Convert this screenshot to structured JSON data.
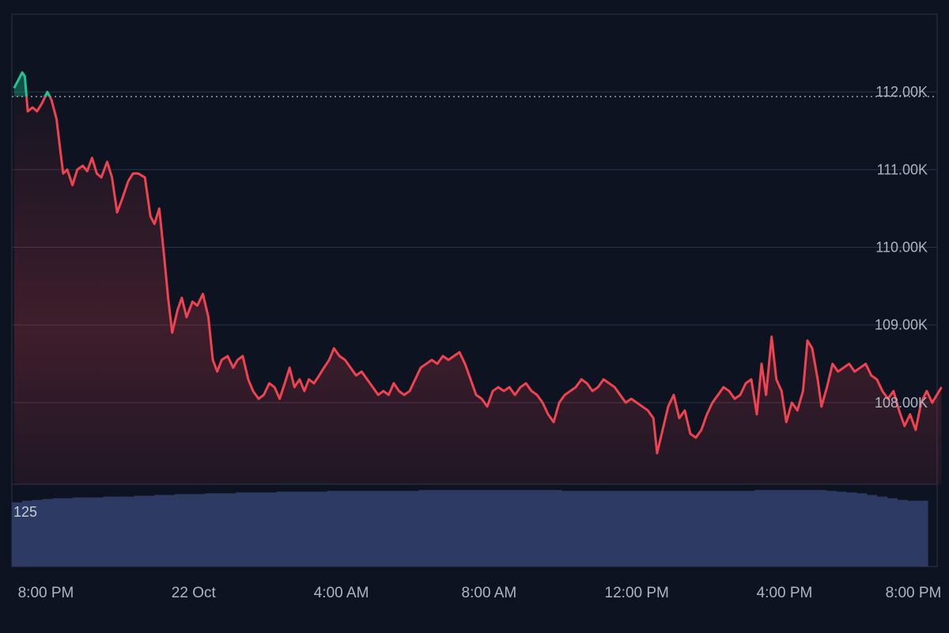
{
  "chart_data": {
    "type": "area",
    "title": "",
    "xlabel": "",
    "ylabel": "",
    "ylim": [
      106950,
      113000
    ],
    "y_ticks": [
      {
        "value": 108000,
        "label": "108.00K"
      },
      {
        "value": 109000,
        "label": "109.00K"
      },
      {
        "value": 110000,
        "label": "110.00K"
      },
      {
        "value": 111000,
        "label": "111.00K"
      },
      {
        "value": 112000,
        "label": "112.00K"
      }
    ],
    "x_ticks": [
      {
        "hour": 0,
        "label": "8:00 PM"
      },
      {
        "hour": 4,
        "label": "22 Oct"
      },
      {
        "hour": 8,
        "label": "4:00 AM"
      },
      {
        "hour": 12,
        "label": "8:00 AM"
      },
      {
        "hour": 16,
        "label": "12:00 PM"
      },
      {
        "hour": 20,
        "label": "4:00 PM"
      },
      {
        "hour": 24,
        "label": "8:00 PM"
      }
    ],
    "reference_price": 111940,
    "series": [
      {
        "points": [
          [
            -0.86,
            112050
          ],
          [
            -0.75,
            112150
          ],
          [
            -0.64,
            112250
          ],
          [
            -0.57,
            112200
          ],
          [
            -0.49,
            111750
          ],
          [
            -0.36,
            111800
          ],
          [
            -0.24,
            111750
          ],
          [
            -0.11,
            111850
          ],
          [
            0.04,
            112000
          ],
          [
            0.15,
            111900
          ],
          [
            0.29,
            111650
          ],
          [
            0.39,
            111250
          ],
          [
            0.47,
            110950
          ],
          [
            0.58,
            111000
          ],
          [
            0.72,
            110800
          ],
          [
            0.85,
            111000
          ],
          [
            1.0,
            111050
          ],
          [
            1.12,
            110980
          ],
          [
            1.25,
            111150
          ],
          [
            1.38,
            110950
          ],
          [
            1.5,
            110900
          ],
          [
            1.66,
            111100
          ],
          [
            1.79,
            110900
          ],
          [
            1.93,
            110450
          ],
          [
            2.05,
            110600
          ],
          [
            2.23,
            110850
          ],
          [
            2.36,
            110950
          ],
          [
            2.5,
            110950
          ],
          [
            2.68,
            110900
          ],
          [
            2.83,
            110400
          ],
          [
            2.94,
            110300
          ],
          [
            3.07,
            110500
          ],
          [
            3.2,
            109900
          ],
          [
            3.31,
            109350
          ],
          [
            3.42,
            108900
          ],
          [
            3.57,
            109200
          ],
          [
            3.68,
            109350
          ],
          [
            3.81,
            109100
          ],
          [
            3.97,
            109300
          ],
          [
            4.1,
            109250
          ],
          [
            4.25,
            109400
          ],
          [
            4.4,
            109100
          ],
          [
            4.52,
            108550
          ],
          [
            4.64,
            108400
          ],
          [
            4.76,
            108550
          ],
          [
            4.92,
            108600
          ],
          [
            5.07,
            108450
          ],
          [
            5.19,
            108550
          ],
          [
            5.33,
            108600
          ],
          [
            5.48,
            108300
          ],
          [
            5.61,
            108150
          ],
          [
            5.76,
            108050
          ],
          [
            5.9,
            108100
          ],
          [
            6.05,
            108250
          ],
          [
            6.19,
            108200
          ],
          [
            6.33,
            108050
          ],
          [
            6.47,
            108250
          ],
          [
            6.6,
            108450
          ],
          [
            6.73,
            108200
          ],
          [
            6.87,
            108300
          ],
          [
            7.0,
            108150
          ],
          [
            7.12,
            108300
          ],
          [
            7.26,
            108250
          ],
          [
            7.4,
            108350
          ],
          [
            7.53,
            108450
          ],
          [
            7.67,
            108550
          ],
          [
            7.8,
            108700
          ],
          [
            7.95,
            108600
          ],
          [
            8.1,
            108550
          ],
          [
            8.25,
            108450
          ],
          [
            8.4,
            108350
          ],
          [
            8.55,
            108400
          ],
          [
            8.7,
            108300
          ],
          [
            8.85,
            108200
          ],
          [
            9.0,
            108100
          ],
          [
            9.14,
            108150
          ],
          [
            9.28,
            108100
          ],
          [
            9.42,
            108250
          ],
          [
            9.56,
            108150
          ],
          [
            9.7,
            108100
          ],
          [
            9.85,
            108150
          ],
          [
            10.0,
            108300
          ],
          [
            10.15,
            108450
          ],
          [
            10.3,
            108500
          ],
          [
            10.45,
            108550
          ],
          [
            10.6,
            108500
          ],
          [
            10.75,
            108600
          ],
          [
            10.9,
            108550
          ],
          [
            11.05,
            108600
          ],
          [
            11.2,
            108650
          ],
          [
            11.35,
            108500
          ],
          [
            11.5,
            108300
          ],
          [
            11.65,
            108100
          ],
          [
            11.8,
            108050
          ],
          [
            11.95,
            107950
          ],
          [
            12.1,
            108150
          ],
          [
            12.25,
            108200
          ],
          [
            12.4,
            108150
          ],
          [
            12.55,
            108200
          ],
          [
            12.7,
            108100
          ],
          [
            12.85,
            108200
          ],
          [
            13.0,
            108250
          ],
          [
            13.15,
            108150
          ],
          [
            13.3,
            108100
          ],
          [
            13.45,
            108000
          ],
          [
            13.6,
            107850
          ],
          [
            13.75,
            107750
          ],
          [
            13.9,
            108000
          ],
          [
            14.05,
            108100
          ],
          [
            14.2,
            108150
          ],
          [
            14.35,
            108200
          ],
          [
            14.5,
            108300
          ],
          [
            14.65,
            108250
          ],
          [
            14.8,
            108150
          ],
          [
            14.95,
            108200
          ],
          [
            15.1,
            108300
          ],
          [
            15.25,
            108250
          ],
          [
            15.4,
            108200
          ],
          [
            15.55,
            108100
          ],
          [
            15.7,
            108000
          ],
          [
            15.85,
            108050
          ],
          [
            16.0,
            108000
          ],
          [
            16.15,
            107950
          ],
          [
            16.3,
            107900
          ],
          [
            16.45,
            107800
          ],
          [
            16.55,
            107350
          ],
          [
            16.7,
            107650
          ],
          [
            16.85,
            107950
          ],
          [
            17.0,
            108100
          ],
          [
            17.15,
            107800
          ],
          [
            17.3,
            107900
          ],
          [
            17.45,
            107600
          ],
          [
            17.6,
            107550
          ],
          [
            17.75,
            107650
          ],
          [
            17.9,
            107850
          ],
          [
            18.05,
            108000
          ],
          [
            18.2,
            108100
          ],
          [
            18.35,
            108200
          ],
          [
            18.5,
            108150
          ],
          [
            18.65,
            108050
          ],
          [
            18.8,
            108100
          ],
          [
            18.95,
            108250
          ],
          [
            19.1,
            108300
          ],
          [
            19.25,
            107850
          ],
          [
            19.38,
            108500
          ],
          [
            19.5,
            108100
          ],
          [
            19.65,
            108850
          ],
          [
            19.78,
            108300
          ],
          [
            19.92,
            108150
          ],
          [
            20.05,
            107750
          ],
          [
            20.2,
            108000
          ],
          [
            20.35,
            107900
          ],
          [
            20.5,
            108150
          ],
          [
            20.62,
            108800
          ],
          [
            20.75,
            108700
          ],
          [
            20.9,
            108300
          ],
          [
            21.0,
            107950
          ],
          [
            21.15,
            108200
          ],
          [
            21.3,
            108500
          ],
          [
            21.45,
            108400
          ],
          [
            21.6,
            108450
          ],
          [
            21.75,
            108500
          ],
          [
            21.9,
            108400
          ],
          [
            22.05,
            108450
          ],
          [
            22.2,
            108500
          ],
          [
            22.35,
            108350
          ],
          [
            22.5,
            108300
          ],
          [
            22.65,
            108150
          ],
          [
            22.8,
            108050
          ],
          [
            22.95,
            108150
          ],
          [
            23.1,
            107900
          ],
          [
            23.25,
            107700
          ],
          [
            23.4,
            107850
          ],
          [
            23.55,
            107650
          ],
          [
            23.7,
            108000
          ],
          [
            23.85,
            108150
          ],
          [
            24.0,
            108000
          ],
          [
            24.25,
            108200
          ]
        ]
      }
    ],
    "volume_label": "125",
    "volume": [
      0.78,
      0.8,
      0.81,
      0.82,
      0.83,
      0.83,
      0.84,
      0.84,
      0.84,
      0.85,
      0.85,
      0.85,
      0.86,
      0.86,
      0.87,
      0.87,
      0.88,
      0.88,
      0.88,
      0.89,
      0.89,
      0.89,
      0.9,
      0.9,
      0.9,
      0.9,
      0.91,
      0.91,
      0.91,
      0.91,
      0.91,
      0.92,
      0.92,
      0.92,
      0.92,
      0.92,
      0.92,
      0.92,
      0.92,
      0.92,
      0.93,
      0.93,
      0.93,
      0.93,
      0.93,
      0.93,
      0.93,
      0.93,
      0.93,
      0.93,
      0.93,
      0.93,
      0.93,
      0.93,
      0.92,
      0.92,
      0.92,
      0.92,
      0.92,
      0.92,
      0.92,
      0.92,
      0.92,
      0.92,
      0.92,
      0.92,
      0.92,
      0.92,
      0.92,
      0.92,
      0.92,
      0.92,
      0.92,
      0.93,
      0.93,
      0.93,
      0.93,
      0.93,
      0.93,
      0.93,
      0.92,
      0.91,
      0.9,
      0.89,
      0.87,
      0.85,
      0.83,
      0.81,
      0.8,
      0.8
    ],
    "colors": {
      "background": "#0d1321",
      "grid": "#2b3344",
      "line_down": "#f0434f",
      "line_up": "#22c391",
      "volume_bar": "#2d3a63",
      "reference_line": "#c9ced8"
    }
  }
}
